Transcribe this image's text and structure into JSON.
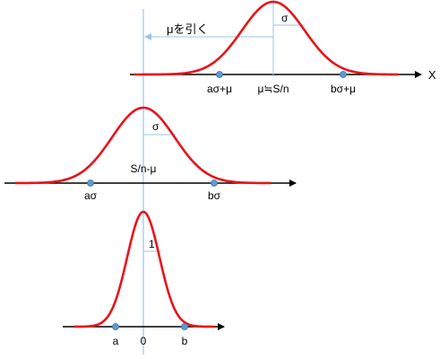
{
  "colors": {
    "curve": "#e8141b",
    "axis": "#000000",
    "guide": "#9ec3e6",
    "point_fill": "#5b9bd5",
    "point_stroke": "#41719c"
  },
  "top": {
    "shift_label": "μを引く",
    "sigma": "σ",
    "axis_end": "X",
    "ticks": [
      "aσ+μ",
      "μ≒S/n",
      "bσ+μ"
    ]
  },
  "middle": {
    "sigma": "σ",
    "axis_title": "S/n-μ",
    "ticks": [
      "aσ",
      "bσ"
    ]
  },
  "bottom": {
    "unit": "1",
    "ticks": [
      "a",
      "0",
      "b"
    ]
  }
}
